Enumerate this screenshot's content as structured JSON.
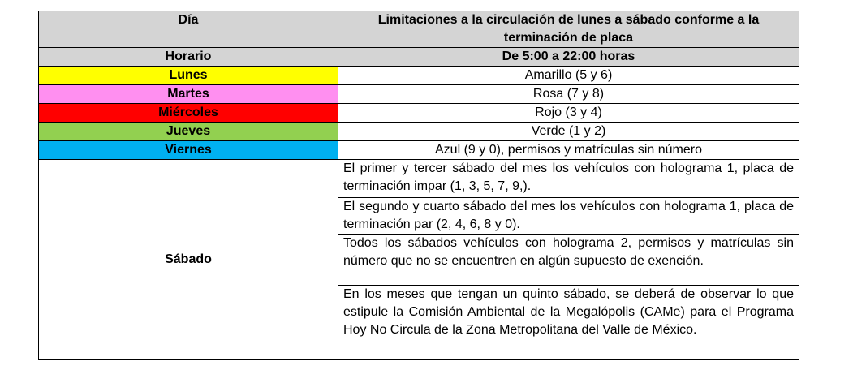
{
  "header": {
    "col1": "Día",
    "col2": "Limitaciones a la circulación de lunes a sábado conforme a la terminación de placa"
  },
  "schedule": {
    "label": "Horario",
    "value": "De 5:00 a 22:00 horas"
  },
  "days": [
    {
      "day": "Lunes",
      "rule": "Amarillo (5 y 6)",
      "color": "#ffff00"
    },
    {
      "day": "Martes",
      "rule": "Rosa (7 y 8)",
      "color": "#ff8ff0"
    },
    {
      "day": "Miércoles",
      "rule": "Rojo (3 y 4)",
      "color": "#ff0000"
    },
    {
      "day": "Jueves",
      "rule": "Verde (1 y 2)",
      "color": "#92d050"
    },
    {
      "day": "Viernes",
      "rule": "Azul (9 y 0), permisos y matrículas sin número",
      "color": "#00b0f0"
    }
  ],
  "saturday": {
    "day": "Sábado",
    "rules": [
      "El primer y tercer sábado del mes los vehículos con holograma 1, placa de terminación impar (1, 3, 5, 7, 9,).",
      "El segundo y cuarto sábado del mes los vehículos con holograma 1, placa de terminación par (2, 4, 6, 8 y 0).",
      "Todos los sábados vehículos con holograma 2, permisos y matrículas sin número que no se encuentren en algún supuesto de exención.",
      "En los meses que tengan un quinto sábado, se deberá de observar lo que estipule la Comisión Ambiental de la Megalópolis (CAMe) para el Programa Hoy No Circula de la Zona Metropolitana del Valle de México."
    ]
  }
}
